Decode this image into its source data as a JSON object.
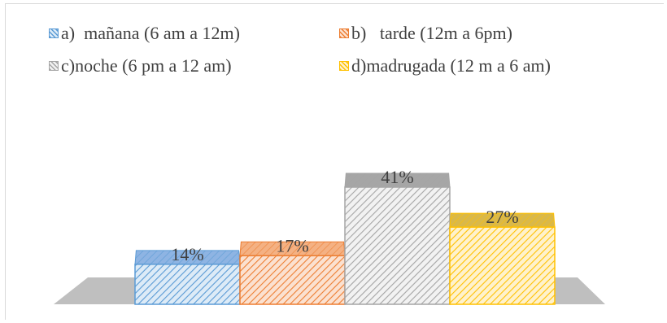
{
  "chart_data": {
    "type": "bar",
    "style": "3d-clustered-column",
    "categories": [
      "a)  mañana (6 am a 12m)",
      "b)   tarde (12m a 6pm)",
      "c)noche (6 pm a 12 am)",
      "d)madrugada (12 m a 6 am)"
    ],
    "values": [
      14,
      17,
      41,
      27
    ],
    "data_labels": [
      "14%",
      "17%",
      "41%",
      "27%"
    ],
    "unit": "%",
    "ylim": [
      0,
      41
    ],
    "grid": false,
    "legend_position": "top",
    "colors": {
      "face": [
        "#ddebf7",
        "#fbe1d0",
        "#f2f2f2",
        "#fff2cc"
      ],
      "stripe": [
        "#5b9bd5",
        "#ed7d31",
        "#a5a5a5",
        "#ffc000"
      ],
      "top": [
        "#8eb4e3",
        "#f4b183",
        "#a6a6a6",
        "#d9b84a"
      ],
      "floor": "#bfbfbf"
    }
  }
}
